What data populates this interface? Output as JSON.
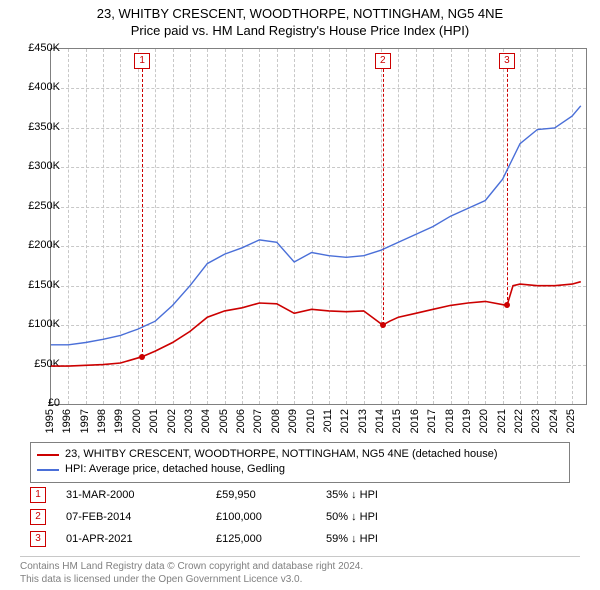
{
  "title_line1": "23, WHITBY CRESCENT, WOODTHORPE, NOTTINGHAM, NG5 4NE",
  "title_line2": "Price paid vs. HM Land Registry's House Price Index (HPI)",
  "chart": {
    "background_color": "#ffffff",
    "border_color": "#808080",
    "grid_color": "#c8c8c8",
    "x": {
      "min": 1995,
      "max": 2025.8,
      "ticks": [
        1995,
        1996,
        1997,
        1998,
        1999,
        2000,
        2001,
        2002,
        2003,
        2004,
        2005,
        2006,
        2007,
        2008,
        2009,
        2010,
        2011,
        2012,
        2013,
        2014,
        2015,
        2016,
        2017,
        2018,
        2019,
        2020,
        2021,
        2022,
        2023,
        2024,
        2025
      ]
    },
    "y": {
      "min": 0,
      "max": 450000,
      "ticks": [
        0,
        50000,
        100000,
        150000,
        200000,
        250000,
        300000,
        350000,
        400000,
        450000
      ],
      "tick_labels": [
        "£0",
        "£50K",
        "£100K",
        "£150K",
        "£200K",
        "£250K",
        "£300K",
        "£350K",
        "£400K",
        "£450K"
      ]
    },
    "tick_fontsize": 11
  },
  "series": {
    "price_paid": {
      "label": "23, WHITBY CRESCENT, WOODTHORPE, NOTTINGHAM, NG5 4NE (detached house)",
      "color": "#cc0000",
      "line_width": 1.6,
      "data": [
        [
          1995,
          48000
        ],
        [
          1996,
          48000
        ],
        [
          1997,
          49000
        ],
        [
          1998,
          50000
        ],
        [
          1999,
          52000
        ],
        [
          2000.25,
          59950
        ],
        [
          2001,
          67000
        ],
        [
          2002,
          78000
        ],
        [
          2003,
          92000
        ],
        [
          2004,
          110000
        ],
        [
          2005,
          118000
        ],
        [
          2006,
          122000
        ],
        [
          2007,
          128000
        ],
        [
          2008,
          127000
        ],
        [
          2009,
          115000
        ],
        [
          2010,
          120000
        ],
        [
          2011,
          118000
        ],
        [
          2012,
          117000
        ],
        [
          2013,
          118000
        ],
        [
          2014.1,
          100000
        ],
        [
          2014.5,
          105000
        ],
        [
          2015,
          110000
        ],
        [
          2016,
          115000
        ],
        [
          2017,
          120000
        ],
        [
          2018,
          125000
        ],
        [
          2019,
          128000
        ],
        [
          2020,
          130000
        ],
        [
          2021.25,
          125000
        ],
        [
          2021.6,
          150000
        ],
        [
          2022,
          152000
        ],
        [
          2023,
          150000
        ],
        [
          2024,
          150000
        ],
        [
          2025,
          152000
        ],
        [
          2025.5,
          155000
        ]
      ]
    },
    "hpi": {
      "label": "HPI: Average price, detached house, Gedling",
      "color": "#4a6fd8",
      "line_width": 1.4,
      "data": [
        [
          1995,
          75000
        ],
        [
          1996,
          75000
        ],
        [
          1997,
          78000
        ],
        [
          1998,
          82000
        ],
        [
          1999,
          87000
        ],
        [
          2000,
          95000
        ],
        [
          2001,
          105000
        ],
        [
          2002,
          125000
        ],
        [
          2003,
          150000
        ],
        [
          2004,
          178000
        ],
        [
          2005,
          190000
        ],
        [
          2006,
          198000
        ],
        [
          2007,
          208000
        ],
        [
          2008,
          205000
        ],
        [
          2009,
          180000
        ],
        [
          2010,
          192000
        ],
        [
          2011,
          188000
        ],
        [
          2012,
          186000
        ],
        [
          2013,
          188000
        ],
        [
          2014,
          195000
        ],
        [
          2015,
          205000
        ],
        [
          2016,
          215000
        ],
        [
          2017,
          225000
        ],
        [
          2018,
          238000
        ],
        [
          2019,
          248000
        ],
        [
          2020,
          258000
        ],
        [
          2021,
          285000
        ],
        [
          2022,
          330000
        ],
        [
          2023,
          348000
        ],
        [
          2024,
          350000
        ],
        [
          2025,
          365000
        ],
        [
          2025.5,
          378000
        ]
      ]
    }
  },
  "sales": [
    {
      "n": "1",
      "date": "31-MAR-2000",
      "x": 2000.25,
      "price_num": 59950,
      "price": "£59,950",
      "hpi": "35% ↓ HPI",
      "color": "#cc0000"
    },
    {
      "n": "2",
      "date": "07-FEB-2014",
      "x": 2014.1,
      "price_num": 100000,
      "price": "£100,000",
      "hpi": "50% ↓ HPI",
      "color": "#cc0000"
    },
    {
      "n": "3",
      "date": "01-APR-2021",
      "x": 2021.25,
      "price_num": 125000,
      "price": "£125,000",
      "hpi": "59% ↓ HPI",
      "color": "#cc0000"
    }
  ],
  "legend": {
    "border_color": "#808080",
    "fontsize": 11
  },
  "footer_line1": "Contains HM Land Registry data © Crown copyright and database right 2024.",
  "footer_line2": "This data is licensed under the Open Government Licence v3.0.",
  "footer_color": "#808080"
}
